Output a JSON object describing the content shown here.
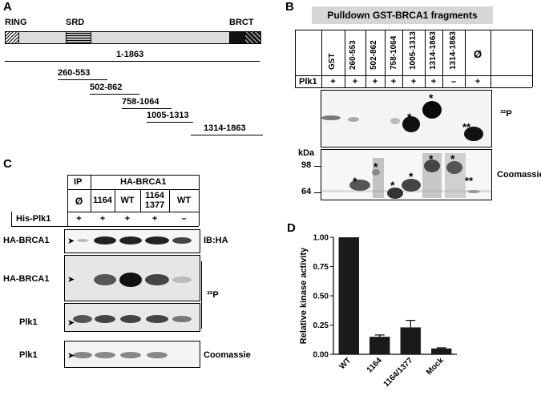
{
  "panels": {
    "a": "A",
    "b": "B",
    "c": "C",
    "d": "D"
  },
  "panel_a": {
    "domains": {
      "ring": "RING",
      "srd": "SRD",
      "brct": "BRCT"
    },
    "fragments": [
      "1-1863",
      "260-553",
      "502-862",
      "758-1064",
      "1005-1313",
      "1314-1863"
    ]
  },
  "panel_b": {
    "title": "Pulldown GST-BRCA1 fragments",
    "lanes": [
      "GST",
      "260-553",
      "502-862",
      "758-1064",
      "1005-1313",
      "1314-1863",
      "1314-1863",
      "Ø"
    ],
    "plk1_label": "Plk1",
    "plk1_row": [
      "+",
      "+",
      "+",
      "+",
      "+",
      "+",
      "–",
      "+"
    ],
    "kda_label": "kDa",
    "markers": [
      "98",
      "64"
    ],
    "p32_label": "³²P",
    "coomassie_label": "Coomassie",
    "star": "*",
    "double_star": "**"
  },
  "panel_c": {
    "ip_label": "IP",
    "ha_brca1_header": "HA-BRCA1",
    "lanes": [
      "Ø",
      "1164",
      "WT",
      "1164\n1377",
      "WT"
    ],
    "his_plk1_label": "His-Plk1",
    "his_plk1_row": [
      "+",
      "+",
      "+",
      "+",
      "–"
    ],
    "row_labels": [
      "HA-BRCA1",
      "HA-BRCA1",
      "Plk1",
      "Plk1"
    ],
    "ib_label": "IB:HA",
    "p32_label": "³²P",
    "coomassie_label": "Coomassie"
  },
  "chart_data": {
    "type": "bar",
    "categories": [
      "WT",
      "1164",
      "1164/1377",
      "Mock"
    ],
    "values": [
      1.0,
      0.15,
      0.23,
      0.05
    ],
    "errors": [
      0.0,
      0.015,
      0.06,
      0.005
    ],
    "ylabel": "Relative kinase activity",
    "xlabel": "",
    "ylim": [
      0,
      1.0
    ],
    "yticks": [
      "0.00",
      "0.25",
      "0.50",
      "0.75",
      "1.00"
    ],
    "bar_color": "#1a1a1a"
  }
}
